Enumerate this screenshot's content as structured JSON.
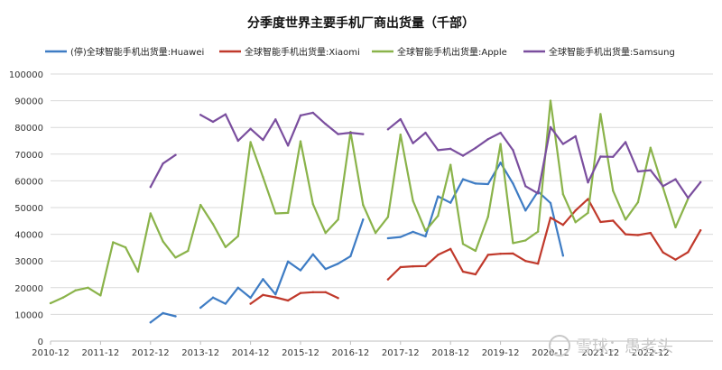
{
  "chart_data": {
    "type": "line",
    "title": "分季度世界主要手机厂商出货量（千部）",
    "xlabel": "",
    "ylabel": "",
    "ylim": [
      0,
      100000
    ],
    "y_ticks": [
      0,
      10000,
      20000,
      30000,
      40000,
      50000,
      60000,
      70000,
      80000,
      90000,
      100000
    ],
    "x_ticks": [
      "2010-12",
      "2011-12",
      "2012-12",
      "2013-12",
      "2014-12",
      "2015-12",
      "2016-12",
      "2017-12",
      "2018-12",
      "2019-12",
      "2020-12",
      "2021-12",
      "2022-12"
    ],
    "x_start": "2010-12",
    "grid": "horizontal",
    "legend_position": "top",
    "series": [
      {
        "name": "(停)全球智能手机出货量:Huawei",
        "color": "#3e7cc4",
        "values": [
          null,
          null,
          null,
          null,
          null,
          null,
          null,
          null,
          7000,
          10500,
          9300,
          null,
          12500,
          16300,
          14000,
          20000,
          16200,
          23200,
          17500,
          29800,
          26500,
          32500,
          27000,
          29000,
          31800,
          45500,
          null,
          38500,
          39000,
          40900,
          39200,
          54200,
          51800,
          60600,
          59000,
          58800,
          66800,
          59000,
          48900,
          56000,
          51700,
          32000,
          null,
          null,
          null,
          null,
          null,
          null,
          null,
          null,
          null,
          null,
          null
        ]
      },
      {
        "name": "全球智能手机出货量:Xiaomi",
        "color": "#c0392b",
        "values": [
          null,
          null,
          null,
          null,
          null,
          null,
          null,
          null,
          null,
          null,
          null,
          null,
          null,
          null,
          null,
          null,
          14000,
          17300,
          16400,
          15200,
          18000,
          18300,
          18300,
          16100,
          null,
          null,
          null,
          23100,
          27700,
          28000,
          28100,
          32300,
          34500,
          26000,
          25000,
          32300,
          32700,
          32800,
          30000,
          29000,
          46200,
          43500,
          48900,
          53200,
          44600,
          45100,
          40000,
          39700,
          40500,
          33200,
          30500,
          33300,
          41500
        ]
      },
      {
        "name": "全球智能手机出货量:Apple",
        "color": "#8ab34a",
        "values": [
          14200,
          16300,
          19000,
          20000,
          17100,
          37000,
          35100,
          26000,
          47800,
          37300,
          31300,
          33800,
          51000,
          43800,
          35200,
          39300,
          74500,
          61400,
          47800,
          48000,
          74800,
          51300,
          40500,
          45500,
          78300,
          51000,
          40500,
          46500,
          77300,
          52500,
          41300,
          46900,
          66000,
          36400,
          33800,
          46600,
          73800,
          36700,
          37700,
          41000,
          90000,
          55000,
          44500,
          48000,
          85000,
          56300,
          45500,
          52000,
          72400,
          57500,
          42600,
          53300,
          null
        ]
      },
      {
        "name": "全球智能手机出货量:Samsung",
        "color": "#7a4e9e",
        "values": [
          null,
          null,
          null,
          null,
          null,
          null,
          null,
          null,
          57700,
          66500,
          69700,
          null,
          84700,
          82100,
          84900,
          75000,
          79500,
          75300,
          83000,
          73200,
          84500,
          85500,
          81300,
          77500,
          78000,
          77500,
          null,
          79300,
          83100,
          74100,
          78000,
          71500,
          72000,
          69400,
          72300,
          75600,
          78000,
          71500,
          58000,
          55300,
          80100,
          73800,
          76700,
          59400,
          69100,
          69000,
          74500,
          63500,
          64000,
          58000,
          60600,
          53600,
          59500
        ]
      }
    ],
    "annotations": [
      "雪球：愚老头"
    ]
  }
}
